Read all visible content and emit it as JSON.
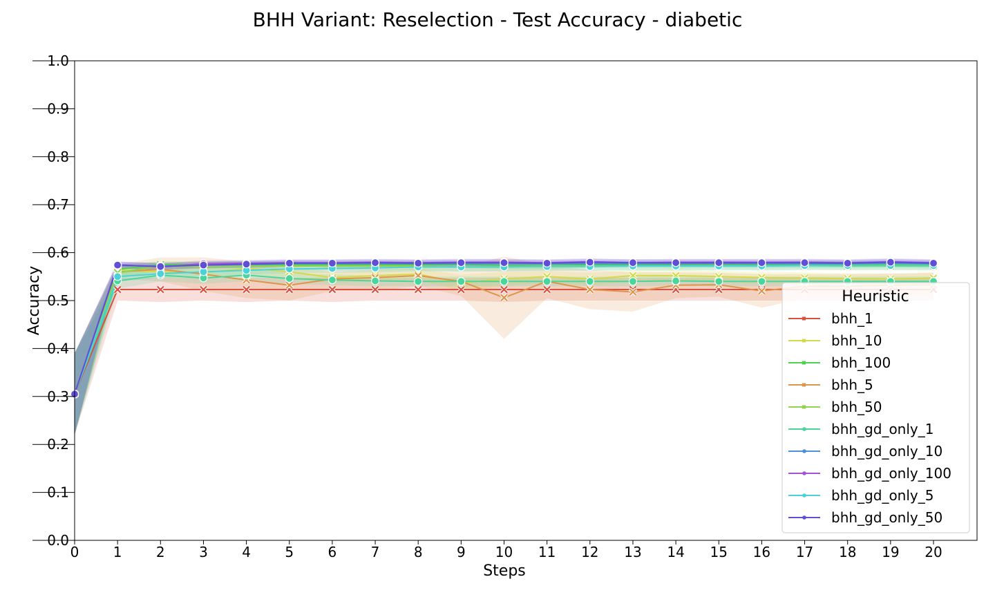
{
  "chart_data": {
    "type": "line",
    "title": "BHH Variant: Reselection - Test Accuracy - diabetic",
    "xlabel": "Steps",
    "ylabel": "Accuracy",
    "xlim": [
      0,
      20
    ],
    "ylim": [
      0.0,
      1.0
    ],
    "x_ticks": [
      "0",
      "1",
      "2",
      "3",
      "4",
      "5",
      "6",
      "7",
      "8",
      "9",
      "10",
      "11",
      "12",
      "13",
      "14",
      "15",
      "16",
      "17",
      "18",
      "19",
      "20"
    ],
    "y_ticks": [
      "0.0",
      "0.1",
      "0.2",
      "0.3",
      "0.4",
      "0.5",
      "0.6",
      "0.7",
      "0.8",
      "0.9",
      "1.0"
    ],
    "grid": false,
    "legend_title": "Heuristic",
    "legend_position": "lower-right",
    "x": [
      0,
      1,
      2,
      3,
      4,
      5,
      6,
      7,
      8,
      9,
      10,
      11,
      12,
      13,
      14,
      15,
      16,
      17,
      18,
      19,
      20
    ],
    "series": [
      {
        "name": "bhh_1",
        "color": "#d9503f",
        "marker": "x",
        "values": [
          0.305,
          0.523,
          0.523,
          0.523,
          0.523,
          0.523,
          0.523,
          0.523,
          0.523,
          0.523,
          0.523,
          0.523,
          0.523,
          0.523,
          0.523,
          0.523,
          0.523,
          0.523,
          0.523,
          0.523,
          0.523
        ],
        "band_lower": [
          0.22,
          0.5,
          0.497,
          0.5,
          0.497,
          0.5,
          0.497,
          0.5,
          0.5,
          0.5,
          0.497,
          0.5,
          0.5,
          0.5,
          0.5,
          0.5,
          0.5,
          0.5,
          0.5,
          0.5,
          0.5
        ],
        "band_upper": [
          0.39,
          0.547,
          0.548,
          0.547,
          0.548,
          0.547,
          0.548,
          0.547,
          0.547,
          0.547,
          0.548,
          0.547,
          0.547,
          0.547,
          0.547,
          0.547,
          0.547,
          0.547,
          0.547,
          0.547,
          0.547
        ]
      },
      {
        "name": "bhh_10",
        "color": "#d4d94a",
        "marker": "x",
        "values": [
          0.305,
          0.563,
          0.56,
          0.558,
          0.567,
          0.56,
          0.548,
          0.552,
          0.555,
          0.537,
          0.545,
          0.55,
          0.545,
          0.552,
          0.552,
          0.55,
          0.548,
          0.547,
          0.546,
          0.545,
          0.547
        ],
        "band_lower": [
          0.22,
          0.55,
          0.548,
          0.545,
          0.552,
          0.547,
          0.537,
          0.54,
          0.543,
          0.52,
          0.53,
          0.538,
          0.532,
          0.54,
          0.54,
          0.538,
          0.536,
          0.535,
          0.535,
          0.534,
          0.535
        ],
        "band_upper": [
          0.39,
          0.576,
          0.572,
          0.571,
          0.582,
          0.573,
          0.559,
          0.564,
          0.567,
          0.554,
          0.56,
          0.562,
          0.558,
          0.564,
          0.564,
          0.562,
          0.56,
          0.559,
          0.557,
          0.556,
          0.559
        ]
      },
      {
        "name": "bhh_100",
        "color": "#4fd24b",
        "marker": "x",
        "values": [
          0.305,
          0.565,
          0.575,
          0.575,
          0.575,
          0.575,
          0.575,
          0.575,
          0.575,
          0.575,
          0.573,
          0.573,
          0.575,
          0.575,
          0.574,
          0.575,
          0.574,
          0.575,
          0.575,
          0.575,
          0.574
        ],
        "band_lower": [
          0.22,
          0.555,
          0.568,
          0.568,
          0.568,
          0.568,
          0.568,
          0.568,
          0.568,
          0.568,
          0.566,
          0.566,
          0.568,
          0.568,
          0.567,
          0.568,
          0.567,
          0.568,
          0.568,
          0.568,
          0.567
        ],
        "band_upper": [
          0.39,
          0.575,
          0.582,
          0.582,
          0.582,
          0.582,
          0.582,
          0.582,
          0.582,
          0.582,
          0.58,
          0.58,
          0.582,
          0.582,
          0.581,
          0.582,
          0.581,
          0.582,
          0.582,
          0.582,
          0.581
        ]
      },
      {
        "name": "bhh_5",
        "color": "#e0944a",
        "marker": "x",
        "values": [
          0.305,
          0.56,
          0.565,
          0.555,
          0.543,
          0.532,
          0.545,
          0.548,
          0.552,
          0.54,
          0.506,
          0.54,
          0.523,
          0.518,
          0.532,
          0.533,
          0.52,
          0.53,
          0.53,
          0.532,
          0.533
        ],
        "band_lower": [
          0.22,
          0.545,
          0.54,
          0.52,
          0.505,
          0.5,
          0.52,
          0.52,
          0.53,
          0.51,
          0.42,
          0.505,
          0.482,
          0.477,
          0.505,
          0.508,
          0.485,
          0.505,
          0.505,
          0.508,
          0.508
        ],
        "band_upper": [
          0.39,
          0.575,
          0.59,
          0.59,
          0.581,
          0.564,
          0.57,
          0.576,
          0.574,
          0.57,
          0.592,
          0.575,
          0.564,
          0.559,
          0.559,
          0.558,
          0.555,
          0.555,
          0.555,
          0.556,
          0.558
        ]
      },
      {
        "name": "bhh_50",
        "color": "#8fd44a",
        "marker": "x",
        "values": [
          0.305,
          0.558,
          0.572,
          0.57,
          0.572,
          0.572,
          0.572,
          0.572,
          0.572,
          0.57,
          0.57,
          0.572,
          0.572,
          0.572,
          0.572,
          0.573,
          0.572,
          0.573,
          0.572,
          0.572,
          0.572
        ],
        "band_lower": [
          0.22,
          0.545,
          0.563,
          0.561,
          0.563,
          0.563,
          0.563,
          0.563,
          0.563,
          0.561,
          0.561,
          0.563,
          0.563,
          0.563,
          0.563,
          0.564,
          0.563,
          0.564,
          0.563,
          0.563,
          0.563
        ],
        "band_upper": [
          0.39,
          0.571,
          0.581,
          0.579,
          0.581,
          0.581,
          0.581,
          0.581,
          0.581,
          0.579,
          0.579,
          0.581,
          0.581,
          0.581,
          0.581,
          0.582,
          0.581,
          0.582,
          0.581,
          0.581,
          0.581
        ]
      },
      {
        "name": "bhh_gd_only_1",
        "color": "#49d69b",
        "marker": "o",
        "values": [
          0.305,
          0.541,
          0.553,
          0.547,
          0.553,
          0.546,
          0.543,
          0.541,
          0.54,
          0.54,
          0.54,
          0.54,
          0.54,
          0.54,
          0.541,
          0.54,
          0.54,
          0.54,
          0.54,
          0.54,
          0.54
        ],
        "band_lower": [
          0.22,
          0.525,
          0.54,
          0.535,
          0.54,
          0.535,
          0.532,
          0.53,
          0.53,
          0.53,
          0.53,
          0.53,
          0.53,
          0.53,
          0.531,
          0.53,
          0.53,
          0.53,
          0.53,
          0.53,
          0.53
        ],
        "band_upper": [
          0.39,
          0.557,
          0.566,
          0.559,
          0.566,
          0.557,
          0.554,
          0.552,
          0.55,
          0.55,
          0.55,
          0.55,
          0.55,
          0.55,
          0.551,
          0.55,
          0.55,
          0.55,
          0.55,
          0.55,
          0.55
        ]
      },
      {
        "name": "bhh_gd_only_10",
        "color": "#4a90d9",
        "marker": "o",
        "values": [
          0.305,
          0.573,
          0.572,
          0.574,
          0.575,
          0.577,
          0.577,
          0.577,
          0.577,
          0.577,
          0.577,
          0.577,
          0.577,
          0.577,
          0.577,
          0.577,
          0.577,
          0.577,
          0.577,
          0.578,
          0.577
        ],
        "band_lower": [
          0.22,
          0.566,
          0.565,
          0.567,
          0.568,
          0.57,
          0.57,
          0.57,
          0.57,
          0.57,
          0.57,
          0.57,
          0.57,
          0.57,
          0.57,
          0.57,
          0.57,
          0.57,
          0.57,
          0.571,
          0.57
        ],
        "band_upper": [
          0.39,
          0.58,
          0.579,
          0.581,
          0.582,
          0.584,
          0.584,
          0.584,
          0.584,
          0.584,
          0.584,
          0.584,
          0.584,
          0.584,
          0.584,
          0.584,
          0.584,
          0.584,
          0.584,
          0.585,
          0.584
        ]
      },
      {
        "name": "bhh_gd_only_100",
        "color": "#a352d9",
        "marker": "o",
        "values": [
          0.305,
          0.575,
          0.57,
          0.577,
          0.578,
          0.579,
          0.579,
          0.58,
          0.579,
          0.58,
          0.58,
          0.579,
          0.581,
          0.579,
          0.58,
          0.58,
          0.58,
          0.58,
          0.579,
          0.581,
          0.579
        ],
        "band_lower": [
          0.22,
          0.568,
          0.563,
          0.57,
          0.571,
          0.572,
          0.572,
          0.573,
          0.572,
          0.573,
          0.573,
          0.572,
          0.574,
          0.572,
          0.573,
          0.573,
          0.573,
          0.573,
          0.572,
          0.574,
          0.572
        ],
        "band_upper": [
          0.39,
          0.582,
          0.577,
          0.584,
          0.585,
          0.586,
          0.586,
          0.587,
          0.586,
          0.587,
          0.587,
          0.586,
          0.588,
          0.586,
          0.587,
          0.587,
          0.587,
          0.587,
          0.586,
          0.588,
          0.586
        ]
      },
      {
        "name": "bhh_gd_only_5",
        "color": "#4ad2d9",
        "marker": "o",
        "values": [
          0.305,
          0.55,
          0.556,
          0.56,
          0.563,
          0.566,
          0.567,
          0.568,
          0.57,
          0.57,
          0.57,
          0.571,
          0.571,
          0.572,
          0.572,
          0.572,
          0.572,
          0.573,
          0.573,
          0.573,
          0.573
        ],
        "band_lower": [
          0.22,
          0.54,
          0.547,
          0.551,
          0.554,
          0.557,
          0.558,
          0.559,
          0.561,
          0.561,
          0.561,
          0.562,
          0.562,
          0.563,
          0.563,
          0.563,
          0.563,
          0.564,
          0.564,
          0.564,
          0.564
        ],
        "band_upper": [
          0.39,
          0.56,
          0.565,
          0.569,
          0.572,
          0.575,
          0.576,
          0.577,
          0.579,
          0.579,
          0.579,
          0.58,
          0.58,
          0.581,
          0.581,
          0.581,
          0.581,
          0.582,
          0.582,
          0.582,
          0.582
        ]
      },
      {
        "name": "bhh_gd_only_50",
        "color": "#5f4fd6",
        "marker": "o",
        "values": [
          0.305,
          0.574,
          0.571,
          0.574,
          0.576,
          0.578,
          0.578,
          0.579,
          0.578,
          0.579,
          0.579,
          0.578,
          0.58,
          0.579,
          0.579,
          0.579,
          0.579,
          0.579,
          0.578,
          0.58,
          0.578
        ],
        "band_lower": [
          0.22,
          0.567,
          0.564,
          0.567,
          0.569,
          0.571,
          0.571,
          0.572,
          0.571,
          0.572,
          0.572,
          0.571,
          0.573,
          0.572,
          0.572,
          0.572,
          0.572,
          0.572,
          0.571,
          0.573,
          0.571
        ],
        "band_upper": [
          0.39,
          0.581,
          0.578,
          0.581,
          0.583,
          0.585,
          0.585,
          0.586,
          0.585,
          0.586,
          0.586,
          0.585,
          0.587,
          0.586,
          0.586,
          0.586,
          0.586,
          0.586,
          0.585,
          0.587,
          0.585
        ]
      }
    ]
  }
}
